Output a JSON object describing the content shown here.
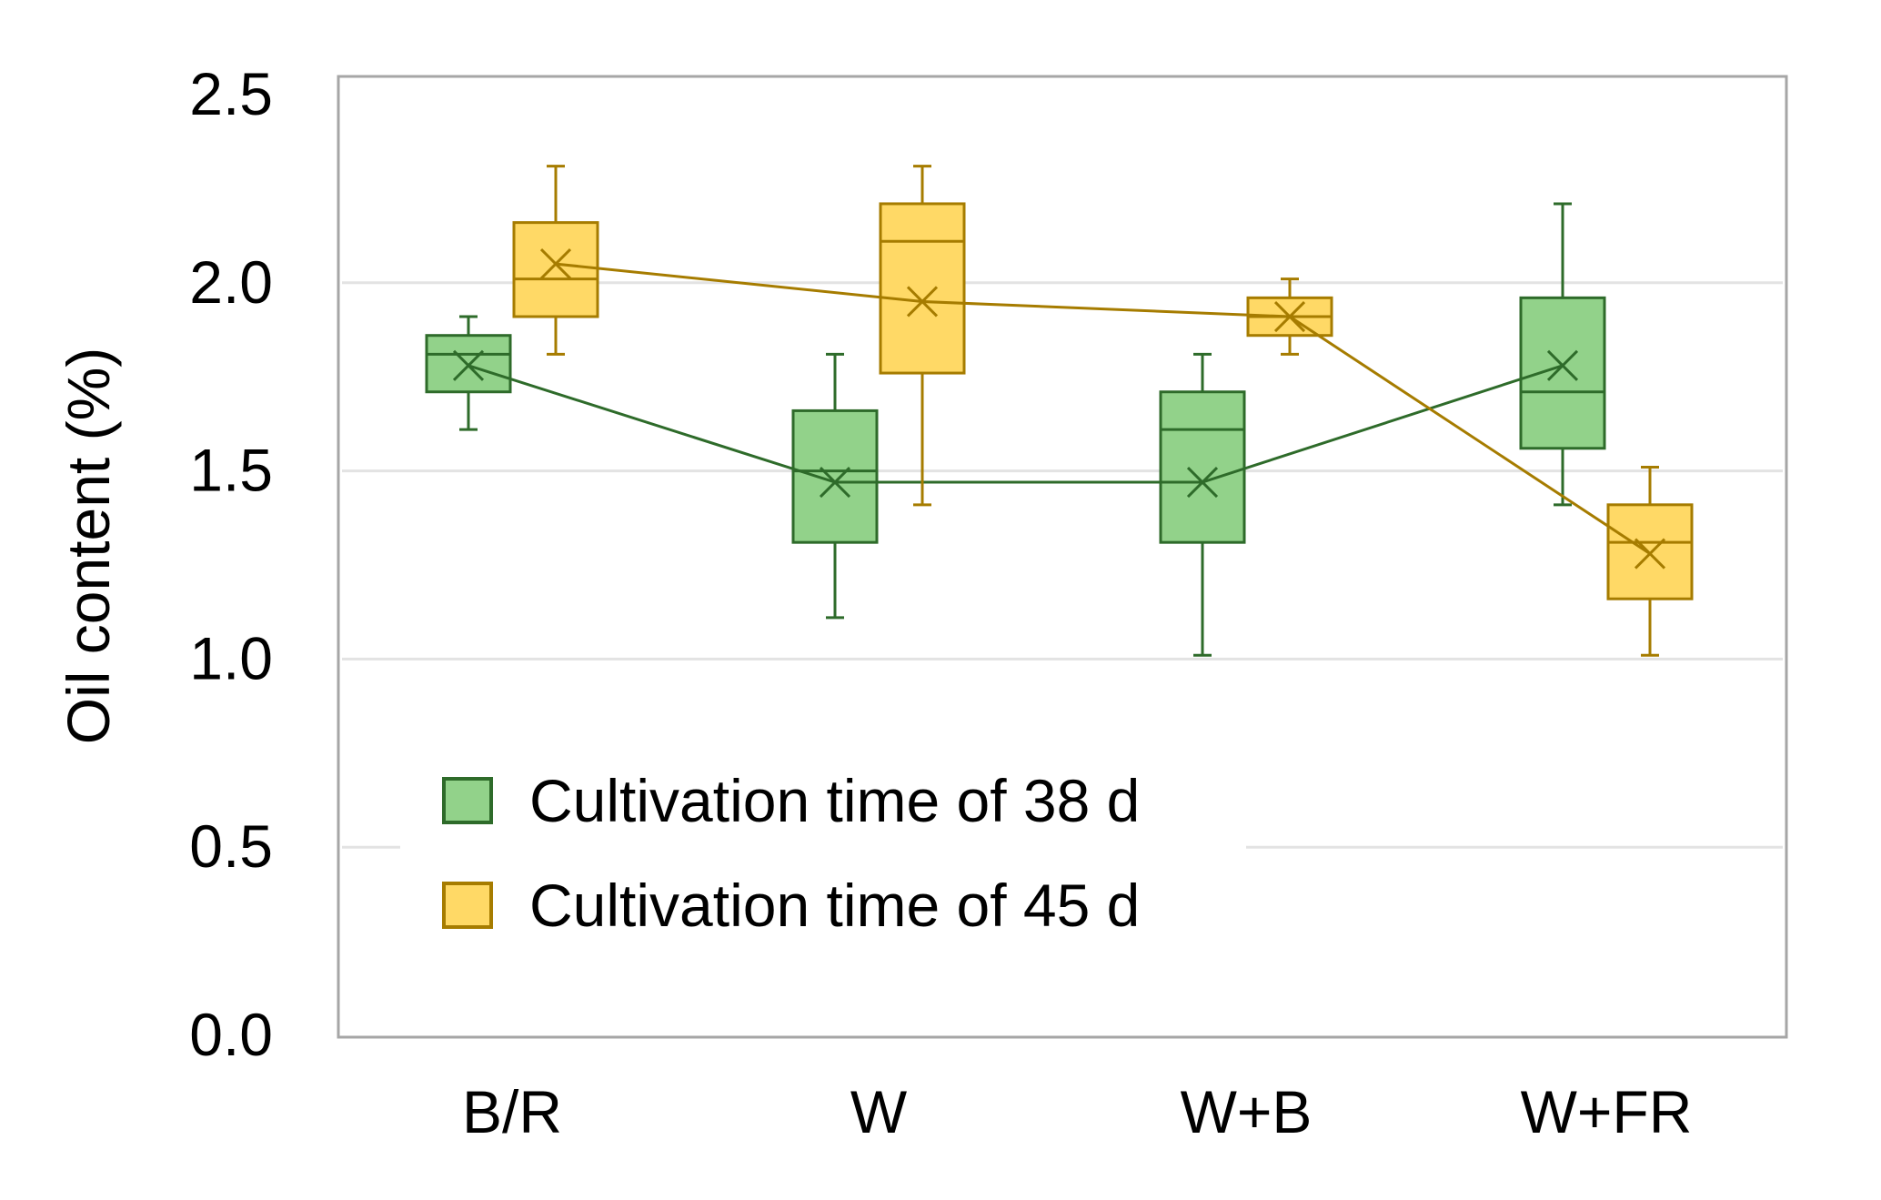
{
  "chart_data": {
    "type": "box",
    "title": "",
    "xlabel": "",
    "ylabel": "Oil content (%)",
    "ylim": [
      0,
      2.5
    ],
    "yticks": [
      "0.0",
      "0.5",
      "1.0",
      "1.5",
      "2.0",
      "2.5"
    ],
    "ytick_values": [
      0,
      0.5,
      1.0,
      1.5,
      2.0,
      2.5
    ],
    "categories": [
      "B/R",
      "W",
      "W+B",
      "W+FR"
    ],
    "grid": "horizontal",
    "legend_position": "bottom-left",
    "series": [
      {
        "name": "Cultivation time of 38 d",
        "fill": "#92d28a",
        "stroke": "#2e6b2a",
        "boxes": [
          {
            "min": 1.61,
            "q1": 1.71,
            "median": 1.81,
            "q3": 1.86,
            "max": 1.91,
            "mean": 1.78
          },
          {
            "min": 1.11,
            "q1": 1.31,
            "median": 1.5,
            "q3": 1.66,
            "max": 1.81,
            "mean": 1.47
          },
          {
            "min": 1.01,
            "q1": 1.31,
            "median": 1.61,
            "q3": 1.71,
            "max": 1.81,
            "mean": 1.47
          },
          {
            "min": 1.41,
            "q1": 1.56,
            "median": 1.71,
            "q3": 1.96,
            "max": 2.21,
            "mean": 1.78
          }
        ]
      },
      {
        "name": "Cultivation time of 45 d",
        "fill": "#ffd966",
        "stroke": "#a67c00",
        "boxes": [
          {
            "min": 1.81,
            "q1": 1.91,
            "median": 2.01,
            "q3": 2.16,
            "max": 2.31,
            "mean": 2.05
          },
          {
            "min": 1.41,
            "q1": 1.76,
            "median": 2.11,
            "q3": 2.21,
            "max": 2.31,
            "mean": 1.95
          },
          {
            "min": 1.81,
            "q1": 1.86,
            "median": 1.91,
            "q3": 1.96,
            "max": 2.01,
            "mean": 1.91
          },
          {
            "min": 1.01,
            "q1": 1.16,
            "median": 1.31,
            "q3": 1.41,
            "max": 1.51,
            "mean": 1.28
          }
        ]
      }
    ]
  }
}
